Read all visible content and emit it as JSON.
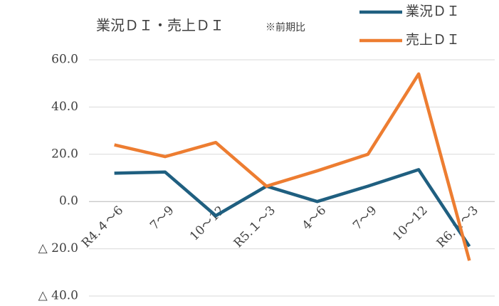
{
  "chart_data": {
    "type": "line",
    "title": "業況ＤＩ・売上ＤＩ",
    "subtitle": "※前期比",
    "categories": [
      "R4.４～6",
      "7～9",
      "10～12",
      "R5.１～3",
      "4～6",
      "7～9",
      "10～12",
      "R6.１～3"
    ],
    "series": [
      {
        "name": "業況ＤＩ",
        "color": "#1f5f80",
        "values": [
          12,
          12.5,
          -6,
          6.5,
          0,
          6.5,
          13.5,
          -19
        ]
      },
      {
        "name": "売上ＤＩ",
        "color": "#ed7d31",
        "values": [
          24,
          19,
          25,
          6.5,
          13,
          20,
          54,
          -25
        ]
      }
    ],
    "ylim": [
      -40,
      60
    ],
    "yticks": [
      {
        "value": 60,
        "label": "60.0"
      },
      {
        "value": 40,
        "label": "40.0"
      },
      {
        "value": 20,
        "label": "20.0"
      },
      {
        "value": 0,
        "label": "0.0"
      },
      {
        "value": -20,
        "label": "△ 20.0"
      },
      {
        "value": -40,
        "label": "△ 40.0"
      }
    ],
    "grid": true,
    "legend": "top-right"
  }
}
